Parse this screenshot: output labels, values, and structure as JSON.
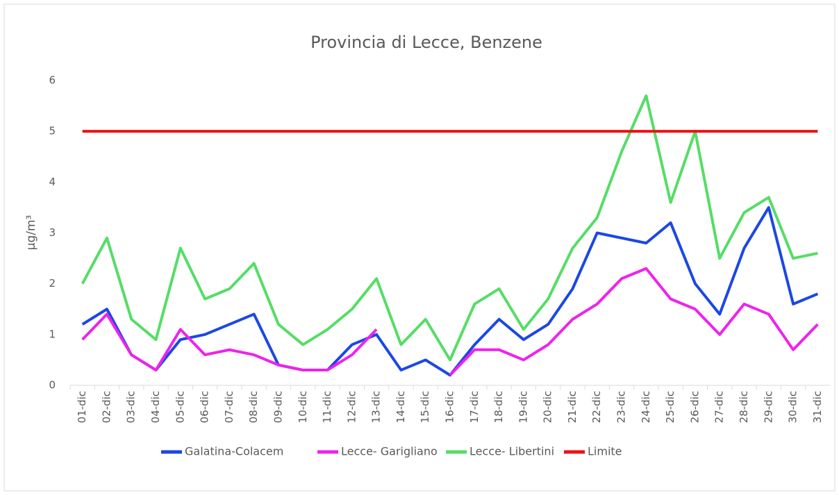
{
  "chart_data": {
    "type": "line",
    "title": "Provincia di Lecce, Benzene",
    "y_label": "µg/m³",
    "categories": [
      "01-dic",
      "02-dic",
      "03-dic",
      "04-dic",
      "05-dic",
      "06-dic",
      "07-dic",
      "08-dic",
      "09-dic",
      "10-dic",
      "11-dic",
      "12-dic",
      "13-dic",
      "14-dic",
      "15-dic",
      "16-dic",
      "17-dic",
      "18-dic",
      "19-dic",
      "20-dic",
      "21-dic",
      "22-dic",
      "23-dic",
      "24-dic",
      "25-dic",
      "26-dic",
      "27-dic",
      "28-dic",
      "29-dic",
      "30-dic",
      "31-dic"
    ],
    "series": [
      {
        "name": "Galatina-Colacem",
        "color": "#1a47e6",
        "values": [
          1.2,
          1.5,
          0.6,
          0.3,
          0.9,
          1.0,
          1.2,
          1.4,
          0.4,
          0.3,
          0.3,
          0.8,
          1.0,
          0.3,
          0.5,
          0.2,
          0.8,
          1.3,
          0.9,
          1.2,
          1.9,
          3.0,
          2.9,
          2.8,
          3.2,
          2.0,
          1.4,
          2.7,
          3.5,
          1.6,
          1.8
        ]
      },
      {
        "name": "Lecce- Garigliano",
        "color": "#ee22ee",
        "values": [
          0.9,
          1.4,
          0.6,
          0.3,
          1.1,
          0.6,
          0.7,
          0.6,
          0.4,
          0.3,
          0.3,
          0.6,
          1.1,
          null,
          null,
          0.2,
          0.7,
          0.7,
          0.5,
          0.8,
          1.3,
          1.6,
          2.1,
          2.3,
          1.7,
          1.5,
          1.0,
          1.6,
          1.4,
          0.7,
          1.2
        ]
      },
      {
        "name": "Lecce- Libertini",
        "color": "#55dd66",
        "values": [
          2.0,
          2.9,
          1.3,
          0.9,
          2.7,
          1.7,
          1.9,
          2.4,
          1.2,
          0.8,
          1.1,
          1.5,
          2.1,
          0.8,
          1.3,
          0.5,
          1.6,
          1.9,
          1.1,
          1.7,
          2.7,
          3.3,
          4.6,
          5.7,
          3.6,
          5.0,
          2.5,
          3.4,
          3.7,
          2.5,
          2.6
        ]
      },
      {
        "name": "Limite",
        "color": "#ee1111",
        "values": [
          5,
          5,
          5,
          5,
          5,
          5,
          5,
          5,
          5,
          5,
          5,
          5,
          5,
          5,
          5,
          5,
          5,
          5,
          5,
          5,
          5,
          5,
          5,
          5,
          5,
          5,
          5,
          5,
          5,
          5,
          5
        ]
      }
    ],
    "ylim": [
      0,
      6
    ],
    "yticks": [
      0,
      1,
      2,
      3,
      4,
      5,
      6
    ],
    "legend": "bottom"
  }
}
